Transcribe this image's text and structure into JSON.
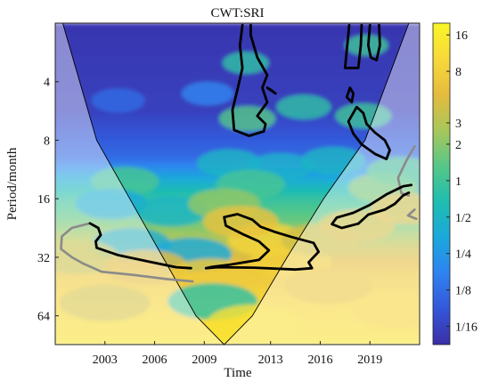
{
  "chart_data": {
    "type": "heatmap",
    "title": "CWT:SRI",
    "xlabel": "Time",
    "ylabel": "Period/month",
    "x_ticks": [
      2003,
      2006,
      2009,
      2013,
      2016,
      2019
    ],
    "xlim": [
      2000,
      2022
    ],
    "y_scale": "log2",
    "y_ticks": [
      4,
      8,
      16,
      32,
      64
    ],
    "ylim": [
      2,
      90
    ],
    "colorbar": {
      "scale": "log2",
      "range": [
        0.0442,
        20
      ],
      "ticks": [
        "16",
        "8",
        "3",
        "2",
        "1",
        "1/2",
        "1/4",
        "1/8",
        "1/16"
      ],
      "tick_values": [
        16,
        8,
        3,
        2,
        1,
        0.5,
        0.25,
        0.125,
        0.0625
      ]
    },
    "colormap": [
      "#3b2ea6",
      "#3357d9",
      "#2f83f0",
      "#1ba8dc",
      "#1fbdb0",
      "#57c788",
      "#a8c75a",
      "#e5bb3e",
      "#f8d93a",
      "#f9f628"
    ],
    "cone_of_influence": true,
    "significance_contours": true,
    "field_blobs": [
      {
        "t": 2003.8,
        "p": 5.0,
        "v": 0.12
      },
      {
        "t": 2009.2,
        "p": 4.6,
        "v": 0.18
      },
      {
        "t": 2011.6,
        "p": 6.2,
        "v": 1.3
      },
      {
        "t": 2011.5,
        "p": 3.2,
        "v": 0.8
      },
      {
        "t": 2015.0,
        "p": 5.4,
        "v": 0.8
      },
      {
        "t": 2018.6,
        "p": 6.0,
        "v": 1.0
      },
      {
        "t": 2018.8,
        "p": 2.6,
        "v": 1.0
      },
      {
        "t": 2010.5,
        "p": 10.5,
        "v": 0.5
      },
      {
        "t": 2013.6,
        "p": 11.0,
        "v": 0.45
      },
      {
        "t": 2016.8,
        "p": 10.2,
        "v": 0.5
      },
      {
        "t": 2004.2,
        "p": 13.0,
        "v": 1.1
      },
      {
        "t": 2011.8,
        "p": 13.5,
        "v": 1.1
      },
      {
        "t": 2019.8,
        "p": 14.0,
        "v": 2.0
      },
      {
        "t": 2020.8,
        "p": 11.5,
        "v": 1.2
      },
      {
        "t": 2003.4,
        "p": 17.0,
        "v": 0.35
      },
      {
        "t": 2007.0,
        "p": 18.5,
        "v": 0.5
      },
      {
        "t": 2010.2,
        "p": 17.0,
        "v": 2.2
      },
      {
        "t": 2012.8,
        "p": 26.0,
        "v": 9.0
      },
      {
        "t": 2011.2,
        "p": 21.0,
        "v": 6.0
      },
      {
        "t": 2014.2,
        "p": 34.0,
        "v": 8.0
      },
      {
        "t": 2016.0,
        "p": 26.0,
        "v": 4.0
      },
      {
        "t": 2018.2,
        "p": 22.0,
        "v": 4.5
      },
      {
        "t": 2021.2,
        "p": 18.0,
        "v": 5.0
      },
      {
        "t": 2004.6,
        "p": 27.5,
        "v": 0.4
      },
      {
        "t": 2008.2,
        "p": 31.0,
        "v": 0.35
      },
      {
        "t": 2001.4,
        "p": 32.0,
        "v": 3.5
      },
      {
        "t": 2005.5,
        "p": 36.0,
        "v": 5.0
      },
      {
        "t": 2009.4,
        "p": 40.0,
        "v": 7.0
      },
      {
        "t": 2009.5,
        "p": 54.0,
        "v": 0.8
      },
      {
        "t": 2003.0,
        "p": 55.0,
        "v": 4.0
      },
      {
        "t": 2016.5,
        "p": 45.0,
        "v": 6.0
      },
      {
        "t": 2020.6,
        "p": 60.0,
        "v": 9.0
      },
      {
        "t": 2012.0,
        "p": 70.0,
        "v": 12.0
      }
    ],
    "cone_points": [
      [
        2000.45,
        2.0
      ],
      [
        2002.5,
        8.0
      ],
      [
        2004.5,
        16.0
      ],
      [
        2006.5,
        32.0
      ],
      [
        2008.5,
        64.0
      ],
      [
        2010.2,
        90.0
      ],
      [
        2011.9,
        64.0
      ],
      [
        2014.0,
        32.0
      ],
      [
        2016.2,
        16.0
      ],
      [
        2018.7,
        8.0
      ],
      [
        2021.35,
        2.0
      ]
    ],
    "contours": [
      {
        "points": [
          [
            2011.3,
            2.05
          ],
          [
            2011.15,
            2.6
          ],
          [
            2011.3,
            3.4
          ],
          [
            2011.0,
            4.4
          ],
          [
            2010.7,
            5.6
          ],
          [
            2010.8,
            7.1
          ],
          [
            2011.7,
            7.6
          ],
          [
            2012.6,
            7.2
          ],
          [
            2012.7,
            6.6
          ],
          [
            2012.2,
            6.0
          ],
          [
            2012.8,
            5.1
          ],
          [
            2012.5,
            4.3
          ],
          [
            2012.8,
            3.7
          ],
          [
            2012.2,
            3.0
          ],
          [
            2011.8,
            2.3
          ],
          [
            2011.8,
            2.05
          ]
        ],
        "closed": false
      },
      {
        "points": [
          [
            2012.8,
            4.3
          ],
          [
            2013.3,
            4.6
          ],
          [
            2013.0,
            4.4
          ],
          [
            2012.8,
            4.3
          ]
        ],
        "closed": false
      },
      {
        "points": [
          [
            2017.75,
            2.05
          ],
          [
            2017.5,
            3.4
          ],
          [
            2018.3,
            3.4
          ],
          [
            2018.45,
            2.6
          ],
          [
            2018.5,
            2.05
          ]
        ],
        "closed": false
      },
      {
        "points": [
          [
            2019.0,
            2.05
          ],
          [
            2018.9,
            2.6
          ],
          [
            2019.05,
            3.0
          ],
          [
            2019.4,
            3.1
          ],
          [
            2019.6,
            2.6
          ],
          [
            2019.55,
            2.05
          ]
        ],
        "closed": false
      },
      {
        "points": [
          [
            2017.8,
            4.3
          ],
          [
            2017.6,
            4.8
          ],
          [
            2017.9,
            5.1
          ],
          [
            2018.0,
            4.6
          ],
          [
            2017.8,
            4.3
          ]
        ],
        "closed": true
      },
      {
        "points": [
          [
            2018.2,
            5.4
          ],
          [
            2017.7,
            6.4
          ],
          [
            2018.0,
            7.4
          ],
          [
            2018.5,
            8.4
          ],
          [
            2019.3,
            9.4
          ],
          [
            2020.0,
            10.0
          ],
          [
            2020.2,
            9.0
          ],
          [
            2019.9,
            8.0
          ],
          [
            2019.3,
            7.3
          ],
          [
            2018.8,
            6.6
          ],
          [
            2018.6,
            5.8
          ],
          [
            2018.2,
            5.4
          ]
        ],
        "closed": true
      },
      {
        "points": [
          [
            2009.1,
            36.4
          ],
          [
            2009.8,
            36.0
          ],
          [
            2012.0,
            36.2
          ],
          [
            2014.5,
            37.0
          ],
          [
            2015.5,
            36.4
          ],
          [
            2015.3,
            34.0
          ],
          [
            2015.9,
            30.0
          ],
          [
            2015.6,
            27.0
          ],
          [
            2014.3,
            25.2
          ],
          [
            2013.2,
            23.6
          ],
          [
            2012.4,
            22.3
          ],
          [
            2011.9,
            20.5
          ],
          [
            2011.0,
            19.2
          ],
          [
            2010.2,
            19.9
          ],
          [
            2010.3,
            22.0
          ],
          [
            2011.3,
            24.3
          ],
          [
            2012.3,
            26.5
          ],
          [
            2012.9,
            29.5
          ],
          [
            2012.3,
            33.0
          ],
          [
            2010.5,
            35.0
          ],
          [
            2009.5,
            35.8
          ],
          [
            2009.1,
            36.4
          ]
        ],
        "closed": false
      },
      {
        "points": [
          [
            2002.1,
            21.4
          ],
          [
            2002.6,
            22.6
          ],
          [
            2002.75,
            24.6
          ],
          [
            2002.45,
            26.5
          ],
          [
            2002.5,
            28.6
          ],
          [
            2003.8,
            31.2
          ],
          [
            2005.6,
            33.6
          ],
          [
            2007.3,
            36.0
          ],
          [
            2008.2,
            36.4
          ]
        ],
        "closed": false
      },
      {
        "points": [
          [
            2018.3,
            21.5
          ],
          [
            2018.9,
            19.3
          ],
          [
            2019.9,
            18.2
          ],
          [
            2020.5,
            17.0
          ],
          [
            2021.0,
            15.4
          ],
          [
            2021.35,
            14.9
          ]
        ],
        "closed": false
      },
      {
        "points": [
          [
            2018.3,
            21.5
          ],
          [
            2017.3,
            22.6
          ],
          [
            2016.7,
            21.6
          ],
          [
            2017.0,
            20.0
          ],
          [
            2018.0,
            18.9
          ],
          [
            2019.0,
            17.2
          ],
          [
            2020.0,
            15.2
          ],
          [
            2021.0,
            13.8
          ],
          [
            2021.5,
            13.6
          ]
        ],
        "closed": false
      }
    ],
    "grey_contours": [
      {
        "points": [
          [
            2002.1,
            21.4
          ],
          [
            2001.0,
            22.6
          ],
          [
            2000.4,
            25.0
          ],
          [
            2000.35,
            29.0
          ],
          [
            2001.0,
            32.0
          ],
          [
            2001.7,
            34.5
          ],
          [
            2002.8,
            38.0
          ],
          [
            2004.8,
            39.5
          ],
          [
            2006.8,
            41.5
          ],
          [
            2008.3,
            42.6
          ]
        ]
      },
      {
        "points": [
          [
            2021.7,
            8.6
          ],
          [
            2021.2,
            10.2
          ],
          [
            2020.7,
            12.5
          ],
          [
            2020.9,
            15.0
          ],
          [
            2021.35,
            15.4
          ]
        ]
      },
      {
        "points": [
          [
            2021.7,
            18.2
          ],
          [
            2021.3,
            19.5
          ],
          [
            2021.8,
            20.3
          ]
        ]
      }
    ]
  }
}
